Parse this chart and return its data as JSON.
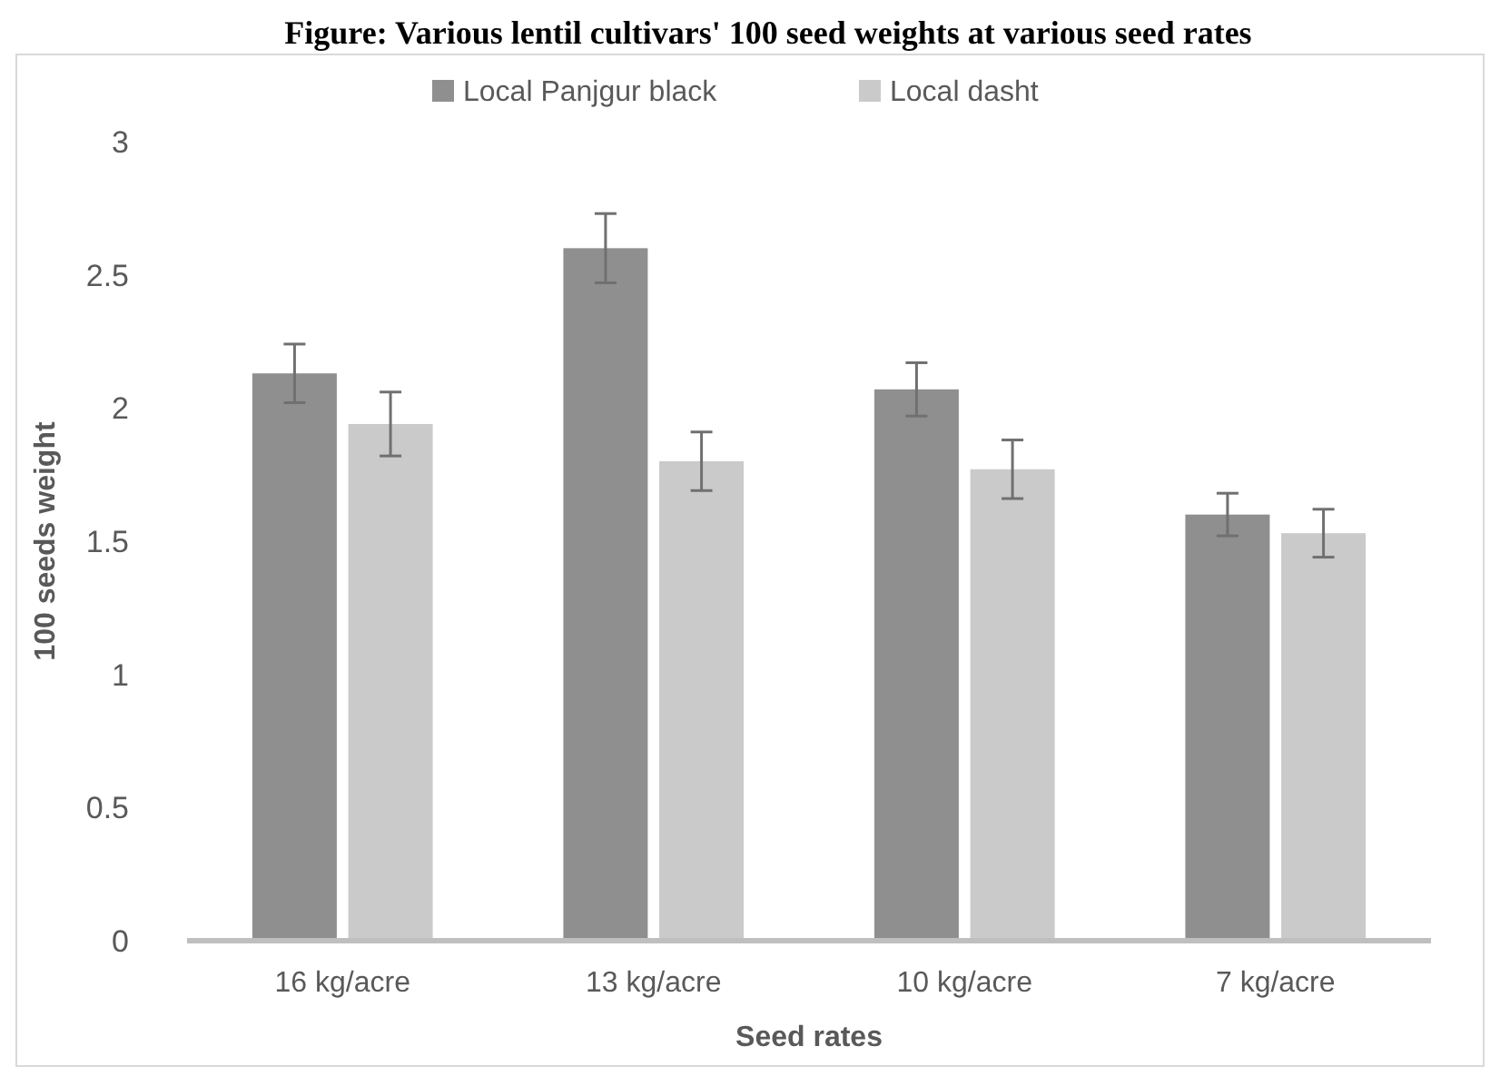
{
  "chart_data": {
    "type": "bar",
    "title": "Figure: Various lentil cultivars' 100 seed weights at various seed rates",
    "xlabel": "Seed rates",
    "ylabel": "100 seeds weight",
    "categories": [
      "16 kg/acre",
      "13 kg/acre",
      "10 kg/acre",
      "7 kg/acre"
    ],
    "series": [
      {
        "name": "Local Panjgur black",
        "color": "#8f8f8f",
        "values": [
          2.13,
          2.6,
          2.07,
          1.6
        ],
        "errors": [
          0.11,
          0.13,
          0.1,
          0.08
        ]
      },
      {
        "name": "Local dasht",
        "color": "#cacaca",
        "values": [
          1.94,
          1.8,
          1.77,
          1.53
        ],
        "errors": [
          0.12,
          0.11,
          0.11,
          0.09
        ]
      }
    ],
    "ylim": [
      0,
      3
    ],
    "yticks": [
      0,
      0.5,
      1,
      1.5,
      2,
      2.5,
      3
    ],
    "legend": "top",
    "grid": false
  }
}
